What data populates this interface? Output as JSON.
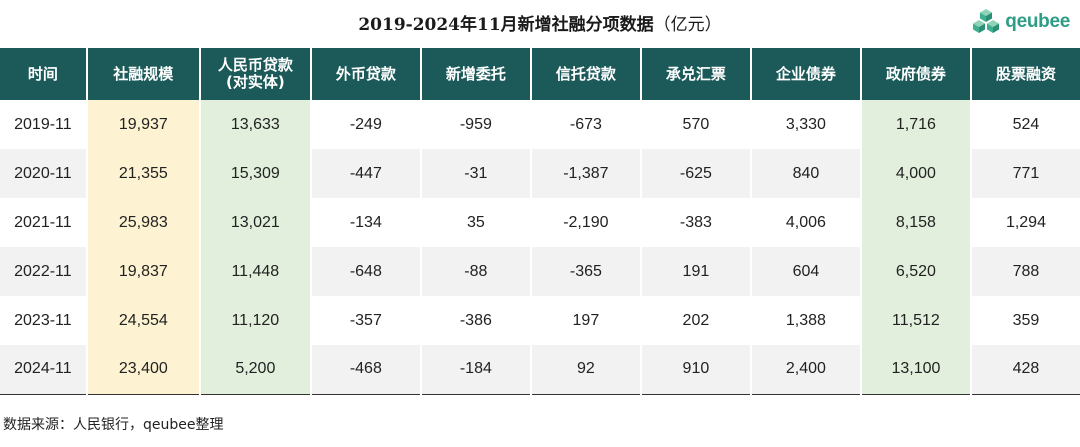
{
  "title": "2019-2024年11月新增社融分项数据",
  "title_unit": "（亿元）",
  "logo": {
    "icon": "qeubee-cube-logo-icon",
    "text": "qeubee",
    "color": "#2e9d86"
  },
  "colors": {
    "header_bg": "#1c5a5a",
    "highlight_yellow": "#fdf3d3",
    "highlight_green": "#e2efdc",
    "alt_row": "#f2f2f2"
  },
  "chart_data": {
    "type": "table",
    "columns": [
      "时间",
      "社融规模",
      "人民币贷款\n(对实体)",
      "外币贷款",
      "新增委托",
      "信托贷款",
      "承兑汇票",
      "企业债券",
      "政府债券",
      "股票融资"
    ],
    "highlighted_columns": {
      "yellow": [
        "社融规模"
      ],
      "green": [
        "人民币贷款\n(对实体)",
        "政府债券"
      ]
    },
    "rows": [
      [
        "2019-11",
        "19,937",
        "13,633",
        "-249",
        "-959",
        "-673",
        "570",
        "3,330",
        "1,716",
        "524"
      ],
      [
        "2020-11",
        "21,355",
        "15,309",
        "-447",
        "-31",
        "-1,387",
        "-625",
        "840",
        "4,000",
        "771"
      ],
      [
        "2021-11",
        "25,983",
        "13,021",
        "-134",
        "35",
        "-2,190",
        "-383",
        "4,006",
        "8,158",
        "1,294"
      ],
      [
        "2022-11",
        "19,837",
        "11,448",
        "-648",
        "-88",
        "-365",
        "191",
        "604",
        "6,520",
        "788"
      ],
      [
        "2023-11",
        "24,554",
        "11,120",
        "-357",
        "-386",
        "197",
        "202",
        "1,388",
        "11,512",
        "359"
      ],
      [
        "2024-11",
        "23,400",
        "5,200",
        "-468",
        "-184",
        "92",
        "910",
        "2,400",
        "13,100",
        "428"
      ]
    ]
  },
  "footnote": "数据来源：人民银行，qeubee整理"
}
